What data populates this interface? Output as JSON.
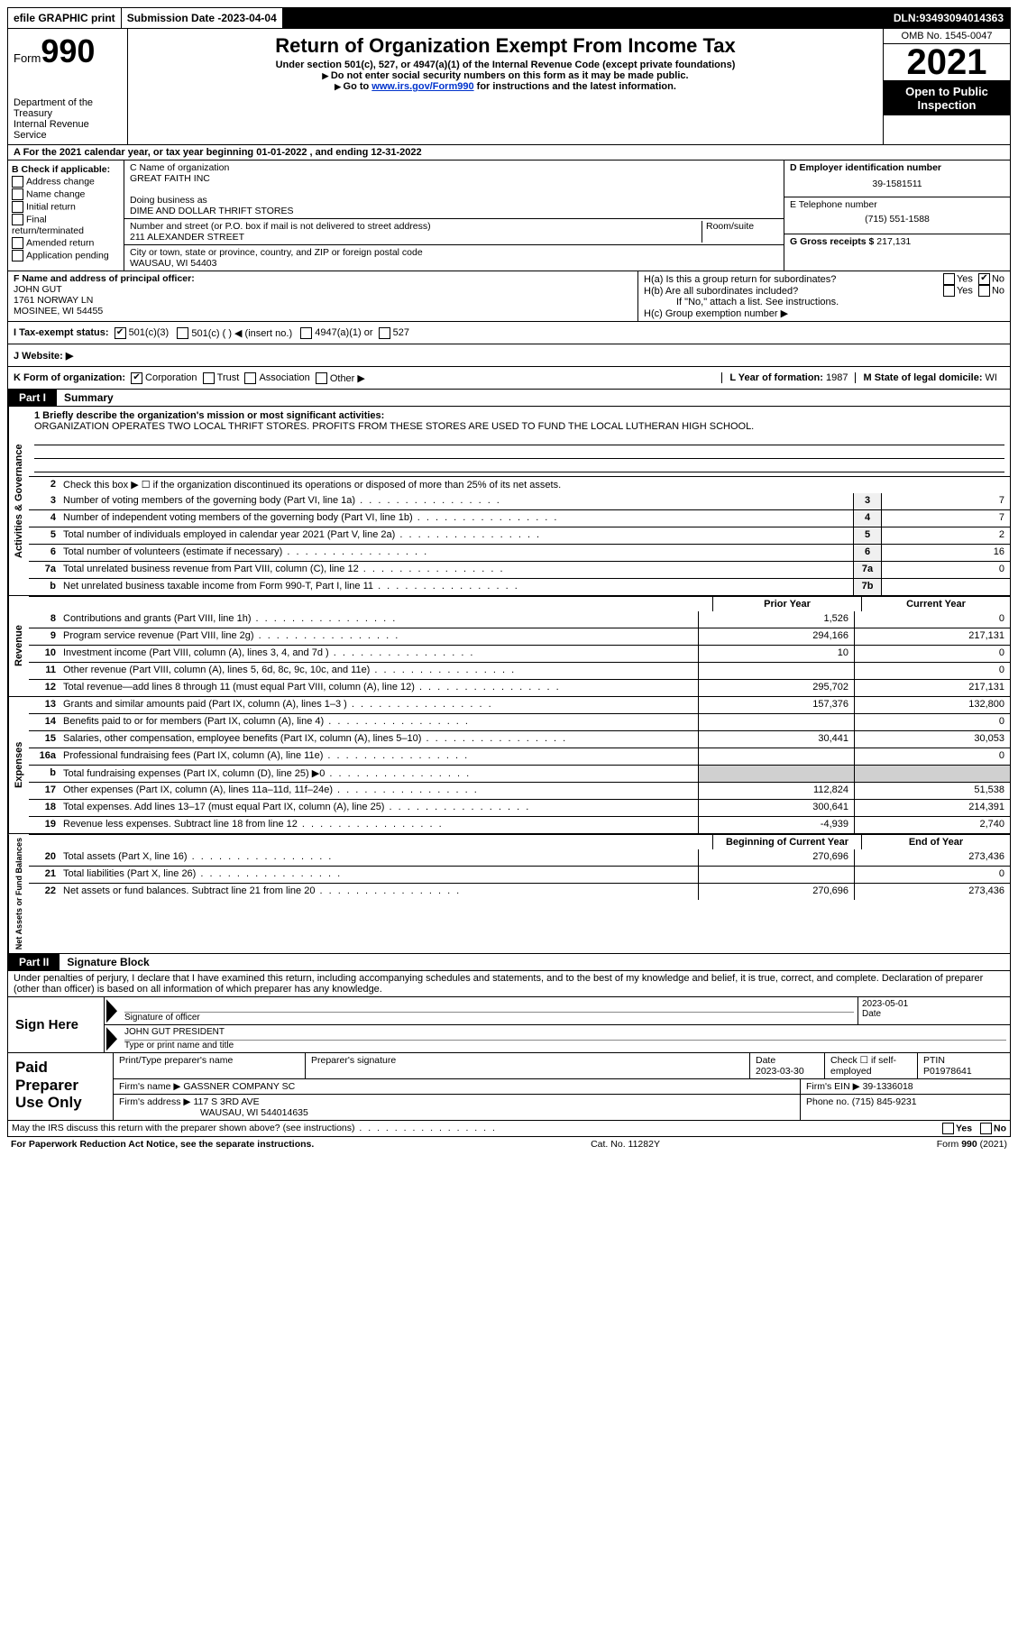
{
  "topbar": {
    "efile": "efile GRAPHIC print",
    "submission_label": "Submission Date - ",
    "submission_date": "2023-04-04",
    "dln_label": "DLN: ",
    "dln": "93493094014363"
  },
  "header": {
    "form_word": "Form",
    "form_num": "990",
    "dept": "Department of the Treasury\nInternal Revenue Service",
    "title": "Return of Organization Exempt From Income Tax",
    "subtitle": "Under section 501(c), 527, or 4947(a)(1) of the Internal Revenue Code (except private foundations)",
    "note1": "Do not enter social security numbers on this form as it may be made public.",
    "note2_pre": "Go to ",
    "note2_link": "www.irs.gov/Form990",
    "note2_post": " for instructions and the latest information.",
    "omb": "OMB No. 1545-0047",
    "year": "2021",
    "inspection": "Open to Public Inspection"
  },
  "row_a": {
    "label_pre": "A For the 2021 calendar year, or tax year beginning ",
    "begin": "01-01-2022",
    "mid": " , and ending ",
    "end": "12-31-2022"
  },
  "box_b": {
    "title": "B Check if applicable:",
    "opts": [
      "Address change",
      "Name change",
      "Initial return",
      "Final return/terminated",
      "Amended return",
      "Application pending"
    ]
  },
  "box_c": {
    "name_label": "C Name of organization",
    "name": "GREAT FAITH INC",
    "dba_label": "Doing business as",
    "dba": "DIME AND DOLLAR THRIFT STORES",
    "addr_label": "Number and street (or P.O. box if mail is not delivered to street address)",
    "room_label": "Room/suite",
    "addr": "211 ALEXANDER STREET",
    "city_label": "City or town, state or province, country, and ZIP or foreign postal code",
    "city": "WAUSAU, WI  54403"
  },
  "box_d": {
    "ein_label": "D Employer identification number",
    "ein": "39-1581511",
    "phone_label": "E Telephone number",
    "phone": "(715) 551-1588",
    "gross_label": "G Gross receipts $ ",
    "gross": "217,131"
  },
  "box_f": {
    "label": "F Name and address of principal officer:",
    "name": "JOHN GUT",
    "addr1": "1761 NORWAY LN",
    "addr2": "MOSINEE, WI  54455"
  },
  "box_h": {
    "ha": "H(a)  Is this a group return for subordinates?",
    "hb": "H(b)  Are all subordinates included?",
    "hb_note": "If \"No,\" attach a list. See instructions.",
    "hc": "H(c)  Group exemption number ▶",
    "yes": "Yes",
    "no": "No"
  },
  "row_i": {
    "label": "I   Tax-exempt status:",
    "o1": "501(c)(3)",
    "o2": "501(c) (  ) ◀ (insert no.)",
    "o3": "4947(a)(1) or",
    "o4": "527"
  },
  "row_j": {
    "label": "J   Website: ▶"
  },
  "row_k": {
    "label": "K Form of organization:",
    "o1": "Corporation",
    "o2": "Trust",
    "o3": "Association",
    "o4": "Other ▶",
    "l_label": "L Year of formation: ",
    "l_val": "1987",
    "m_label": "M State of legal domicile: ",
    "m_val": "WI"
  },
  "parts": {
    "p1": "Part I",
    "p1t": "Summary",
    "p2": "Part II",
    "p2t": "Signature Block"
  },
  "summary": {
    "mission_label": "1   Briefly describe the organization's mission or most significant activities:",
    "mission": "ORGANIZATION OPERATES TWO LOCAL THRIFT STORES. PROFITS FROM THESE STORES ARE USED TO FUND THE LOCAL LUTHERAN HIGH SCHOOL.",
    "line2": "Check this box ▶ ☐ if the organization discontinued its operations or disposed of more than 25% of its net assets.",
    "rows_top": [
      {
        "n": "3",
        "d": "Number of voting members of the governing body (Part VI, line 1a)",
        "b": "3",
        "v": "7"
      },
      {
        "n": "4",
        "d": "Number of independent voting members of the governing body (Part VI, line 1b)",
        "b": "4",
        "v": "7"
      },
      {
        "n": "5",
        "d": "Total number of individuals employed in calendar year 2021 (Part V, line 2a)",
        "b": "5",
        "v": "2"
      },
      {
        "n": "6",
        "d": "Total number of volunteers (estimate if necessary)",
        "b": "6",
        "v": "16"
      },
      {
        "n": "7a",
        "d": "Total unrelated business revenue from Part VIII, column (C), line 12",
        "b": "7a",
        "v": "0"
      },
      {
        "n": "b",
        "d": "Net unrelated business taxable income from Form 990-T, Part I, line 11",
        "b": "7b",
        "v": ""
      }
    ],
    "col_prior": "Prior Year",
    "col_current": "Current Year",
    "revenue": [
      {
        "n": "8",
        "d": "Contributions and grants (Part VIII, line 1h)",
        "p": "1,526",
        "c": "0"
      },
      {
        "n": "9",
        "d": "Program service revenue (Part VIII, line 2g)",
        "p": "294,166",
        "c": "217,131"
      },
      {
        "n": "10",
        "d": "Investment income (Part VIII, column (A), lines 3, 4, and 7d )",
        "p": "10",
        "c": "0"
      },
      {
        "n": "11",
        "d": "Other revenue (Part VIII, column (A), lines 5, 6d, 8c, 9c, 10c, and 11e)",
        "p": "",
        "c": "0"
      },
      {
        "n": "12",
        "d": "Total revenue—add lines 8 through 11 (must equal Part VIII, column (A), line 12)",
        "p": "295,702",
        "c": "217,131"
      }
    ],
    "expenses": [
      {
        "n": "13",
        "d": "Grants and similar amounts paid (Part IX, column (A), lines 1–3 )",
        "p": "157,376",
        "c": "132,800"
      },
      {
        "n": "14",
        "d": "Benefits paid to or for members (Part IX, column (A), line 4)",
        "p": "",
        "c": "0"
      },
      {
        "n": "15",
        "d": "Salaries, other compensation, employee benefits (Part IX, column (A), lines 5–10)",
        "p": "30,441",
        "c": "30,053"
      },
      {
        "n": "16a",
        "d": "Professional fundraising fees (Part IX, column (A), line 11e)",
        "p": "",
        "c": "0"
      },
      {
        "n": "b",
        "d": "Total fundraising expenses (Part IX, column (D), line 25) ▶0",
        "p": "shade",
        "c": "shade"
      },
      {
        "n": "17",
        "d": "Other expenses (Part IX, column (A), lines 11a–11d, 11f–24e)",
        "p": "112,824",
        "c": "51,538"
      },
      {
        "n": "18",
        "d": "Total expenses. Add lines 13–17 (must equal Part IX, column (A), line 25)",
        "p": "300,641",
        "c": "214,391"
      },
      {
        "n": "19",
        "d": "Revenue less expenses. Subtract line 18 from line 12",
        "p": "-4,939",
        "c": "2,740"
      }
    ],
    "col_begin": "Beginning of Current Year",
    "col_end": "End of Year",
    "net": [
      {
        "n": "20",
        "d": "Total assets (Part X, line 16)",
        "p": "270,696",
        "c": "273,436"
      },
      {
        "n": "21",
        "d": "Total liabilities (Part X, line 26)",
        "p": "",
        "c": "0"
      },
      {
        "n": "22",
        "d": "Net assets or fund balances. Subtract line 21 from line 20",
        "p": "270,696",
        "c": "273,436"
      }
    ],
    "tabs": {
      "ag": "Activities & Governance",
      "rev": "Revenue",
      "exp": "Expenses",
      "net": "Net Assets or Fund Balances"
    }
  },
  "sig": {
    "declare": "Under penalties of perjury, I declare that I have examined this return, including accompanying schedules and statements, and to the best of my knowledge and belief, it is true, correct, and complete. Declaration of preparer (other than officer) is based on all information of which preparer has any knowledge.",
    "sign_here": "Sign Here",
    "sig_officer": "Signature of officer",
    "date": "Date",
    "sig_date": "2023-05-01",
    "name_title": "JOHN GUT PRESIDENT",
    "type_name": "Type or print name and title"
  },
  "prep": {
    "title": "Paid Preparer Use Only",
    "pt_name_label": "Print/Type preparer's name",
    "pt_sig_label": "Preparer's signature",
    "pt_date_label": "Date",
    "pt_date": "2023-03-30",
    "pt_self": "Check ☐ if self-employed",
    "ptin_label": "PTIN",
    "ptin": "P01978641",
    "firm_name_label": "Firm's name    ▶ ",
    "firm_name": "GASSNER COMPANY SC",
    "firm_ein_label": "Firm's EIN ▶ ",
    "firm_ein": "39-1336018",
    "firm_addr_label": "Firm's address ▶ ",
    "firm_addr1": "117 S 3RD AVE",
    "firm_addr2": "WAUSAU, WI  544014635",
    "firm_phone_label": "Phone no. ",
    "firm_phone": "(715) 845-9231"
  },
  "discuss": {
    "q": "May the IRS discuss this return with the preparer shown above? (see instructions)",
    "yes": "Yes",
    "no": "No"
  },
  "footer": {
    "pra": "For Paperwork Reduction Act Notice, see the separate instructions.",
    "cat": "Cat. No. 11282Y",
    "form": "Form 990 (2021)"
  }
}
